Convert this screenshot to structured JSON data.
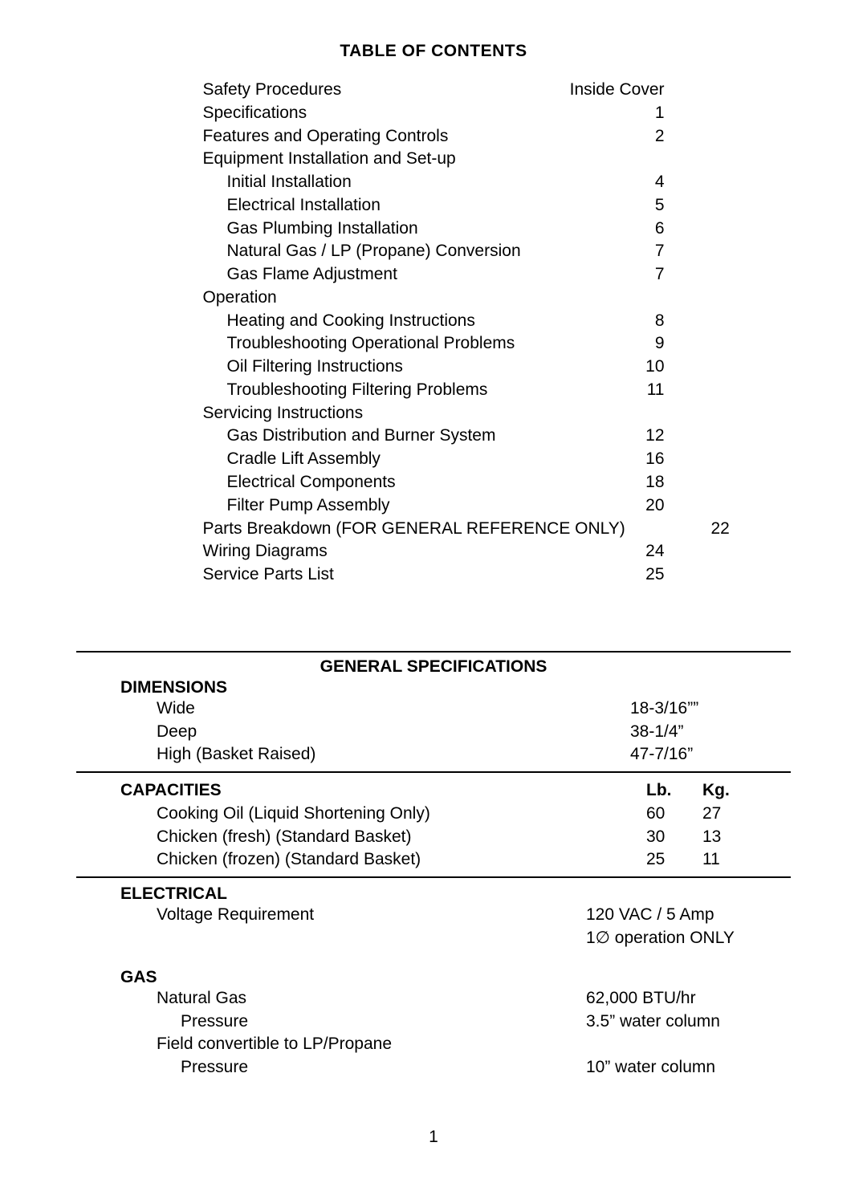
{
  "toc": {
    "title": "TABLE OF CONTENTS",
    "entries": [
      {
        "label": "Safety Procedures",
        "page": "Inside Cover",
        "indent": 0
      },
      {
        "label": "Specifications",
        "page": "1",
        "indent": 0
      },
      {
        "label": "Features and Operating Controls",
        "page": "2",
        "indent": 0
      },
      {
        "label": "Equipment Installation and Set-up",
        "page": "",
        "indent": 0
      },
      {
        "label": "Initial Installation",
        "page": "4",
        "indent": 1
      },
      {
        "label": "Electrical Installation",
        "page": "5",
        "indent": 1
      },
      {
        "label": "Gas Plumbing Installation",
        "page": "6",
        "indent": 1
      },
      {
        "label": "Natural Gas / LP (Propane) Conversion",
        "page": "7",
        "indent": 1
      },
      {
        "label": "Gas Flame Adjustment",
        "page": "7",
        "indent": 1
      },
      {
        "label": "Operation",
        "page": "",
        "indent": 0
      },
      {
        "label": "Heating and Cooking Instructions",
        "page": "8",
        "indent": 1
      },
      {
        "label": "Troubleshooting Operational Problems",
        "page": "9",
        "indent": 1
      },
      {
        "label": "Oil Filtering Instructions",
        "page": "10",
        "indent": 1
      },
      {
        "label": "Troubleshooting Filtering Problems",
        "page": "11",
        "indent": 1
      },
      {
        "label": "Servicing Instructions",
        "page": "",
        "indent": 0
      },
      {
        "label": "Gas Distribution and Burner System",
        "page": "12",
        "indent": 1
      },
      {
        "label": "Cradle Lift Assembly",
        "page": "16",
        "indent": 1
      },
      {
        "label": "Electrical Components",
        "page": "18",
        "indent": 1
      },
      {
        "label": "Filter Pump Assembly",
        "page": "20",
        "indent": 1
      },
      {
        "label": "Parts Breakdown (FOR GENERAL REFERENCE ONLY)",
        "page": "22",
        "indent": 0
      },
      {
        "label": "Wiring Diagrams",
        "page": "24",
        "indent": 0
      },
      {
        "label": "Service Parts List",
        "page": "25",
        "indent": 0
      }
    ]
  },
  "spec": {
    "title": "GENERAL SPECIFICATIONS",
    "dimensions": {
      "heading": "DIMENSIONS",
      "rows": [
        {
          "label": "Wide",
          "value": "18-3/16””"
        },
        {
          "label": "Deep",
          "value": "38-1/4”"
        },
        {
          "label": "High (Basket Raised)",
          "value": "47-7/16”"
        }
      ]
    },
    "capacities": {
      "heading": "CAPACITIES",
      "col1": "Lb.",
      "col2": "Kg.",
      "rows": [
        {
          "label": "Cooking Oil (Liquid Shortening Only)",
          "lb": "60",
          "kg": "27"
        },
        {
          "label": "Chicken (fresh) (Standard Basket)",
          "lb": "30",
          "kg": "13"
        },
        {
          "label": "Chicken (frozen) (Standard Basket)",
          "lb": "25",
          "kg": "11"
        }
      ]
    },
    "electrical": {
      "heading": "ELECTRICAL",
      "rows": [
        {
          "label": "Voltage Requirement",
          "value": "120 VAC / 5 Amp"
        },
        {
          "label": "",
          "value": "1∅ operation ONLY"
        }
      ]
    },
    "gas": {
      "heading": "GAS",
      "rows": [
        {
          "label": "Natural Gas",
          "indent": 1,
          "value": "62,000 BTU/hr"
        },
        {
          "label": "Pressure",
          "indent": 2,
          "value": "3.5” water column"
        },
        {
          "label": "Field convertible to LP/Propane",
          "indent": 1,
          "value": ""
        },
        {
          "label": "Pressure",
          "indent": 2,
          "value": "10” water column"
        }
      ]
    }
  },
  "pagenum": "1"
}
